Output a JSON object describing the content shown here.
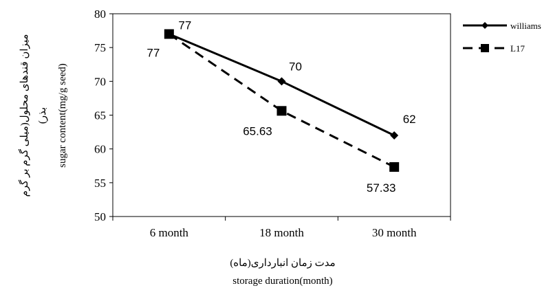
{
  "chart_data": {
    "type": "line",
    "categories": [
      "6 month",
      "18 month",
      "30 month"
    ],
    "series": [
      {
        "name": "williams",
        "values": [
          77,
          70,
          62
        ],
        "style": "solid",
        "marker": "diamond",
        "color": "#000000"
      },
      {
        "name": "L17",
        "values": [
          77,
          65.63,
          57.33
        ],
        "style": "dashed",
        "marker": "square",
        "color": "#000000"
      }
    ],
    "data_labels": {
      "williams": [
        "77",
        "70",
        "62"
      ],
      "L17": [
        "77",
        "65.63",
        "57.33"
      ]
    },
    "ylim": [
      50,
      80
    ],
    "yticks": [
      "50",
      "55",
      "60",
      "65",
      "70",
      "75",
      "80"
    ],
    "xlabel_fa": "مدت زمان انبارداری(ماه)",
    "xlabel_en": "storage duration(month)",
    "ylabel_fa_line1": "میزان قندهای محلول(میلی گرم بر گرم",
    "ylabel_fa_line2": "بذر)",
    "ylabel_en": "sugar content(mg/g seed)",
    "legend_position": "right",
    "grid": false
  }
}
